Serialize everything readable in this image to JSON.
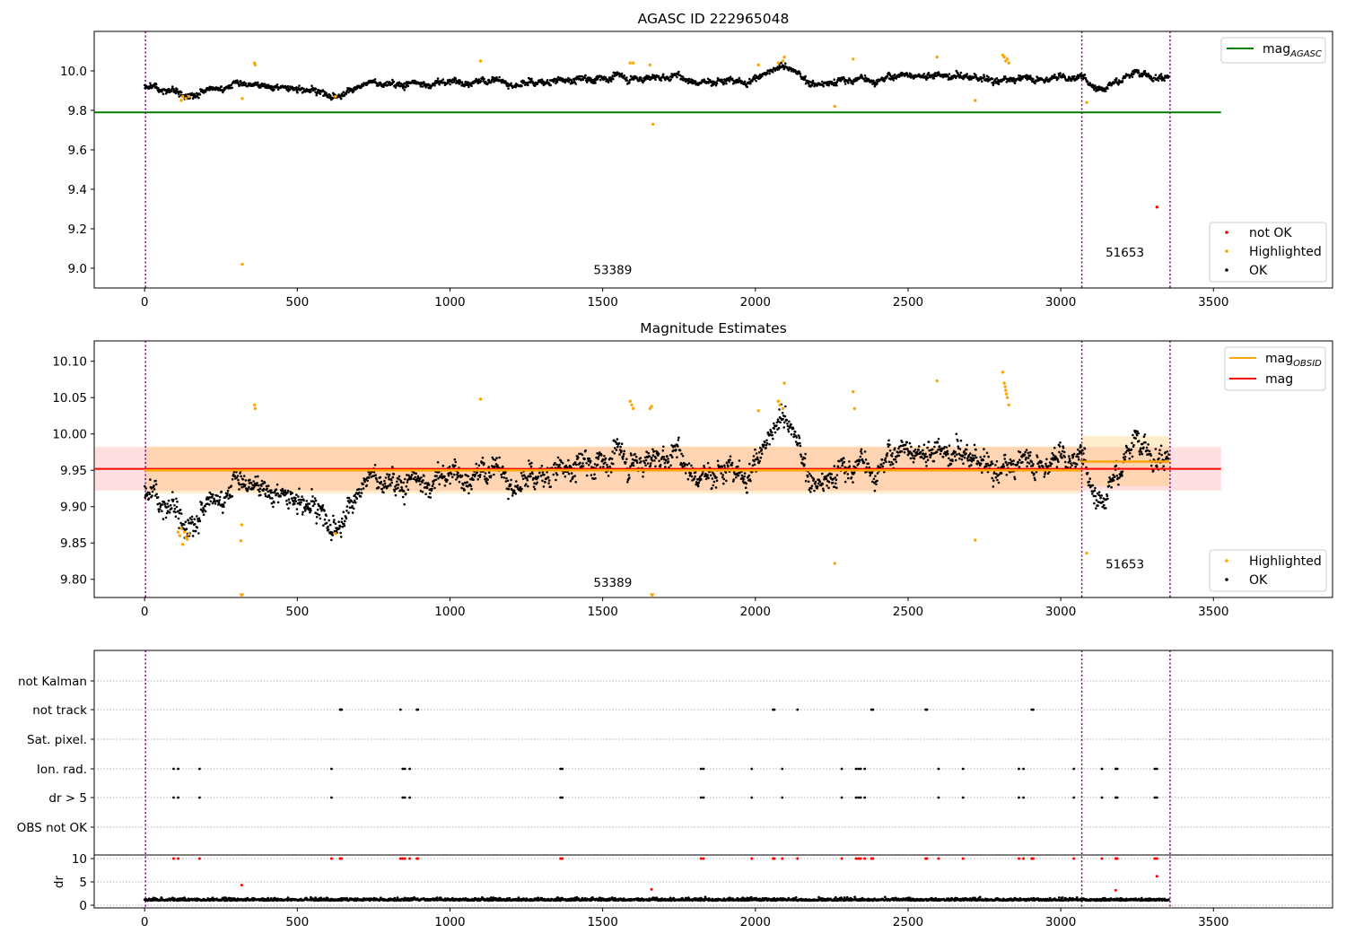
{
  "chart_data": [
    {
      "type": "scatter",
      "title": "AGASC ID 222965048",
      "xlim": [
        -165,
        3890
      ],
      "ylim": [
        8.9,
        10.2
      ],
      "xticks": [
        0,
        500,
        1000,
        1500,
        2000,
        2500,
        3000,
        3500
      ],
      "yticks": [
        9.0,
        9.2,
        9.4,
        9.6,
        9.8,
        10.0
      ],
      "ytick_labels": [
        "9.0",
        "9.2",
        "9.4",
        "9.6",
        "9.8",
        "10.0"
      ],
      "obs_boundaries": [
        0,
        3066,
        3355
      ],
      "obs_labels": [
        {
          "text": "53389",
          "x": 1533,
          "y": 8.97
        },
        {
          "text": "51653",
          "x": 3210,
          "y": 9.06
        }
      ],
      "reference_line": {
        "name": "mag",
        "name_sub": "AGASC",
        "y": 9.79,
        "x_range": [
          -165,
          3525
        ],
        "color": "#008000"
      },
      "legend_lines": [
        {
          "name": "mag",
          "name_sub": "AGASC",
          "color": "#008000"
        }
      ],
      "legend_points": [
        {
          "name": "not OK",
          "color": "#ff0000"
        },
        {
          "name": "Highlighted",
          "color": "#ffa500"
        },
        {
          "name": "OK",
          "color": "#000000"
        }
      ],
      "trend": [
        [
          0,
          9.92
        ],
        [
          60,
          9.93
        ],
        [
          140,
          9.88
        ],
        [
          200,
          9.93
        ],
        [
          360,
          9.92
        ],
        [
          430,
          9.93
        ],
        [
          520,
          9.91
        ],
        [
          600,
          9.89
        ],
        [
          700,
          9.93
        ],
        [
          820,
          9.94
        ],
        [
          1000,
          9.94
        ],
        [
          1150,
          9.94
        ],
        [
          1300,
          9.95
        ],
        [
          1450,
          9.96
        ],
        [
          1600,
          9.97
        ],
        [
          1800,
          9.96
        ],
        [
          2000,
          9.97
        ],
        [
          2100,
          10.0
        ],
        [
          2200,
          9.94
        ],
        [
          2400,
          9.96
        ],
        [
          2600,
          9.99
        ],
        [
          2750,
          9.95
        ],
        [
          2850,
          9.96
        ],
        [
          3000,
          9.97
        ],
        [
          3066,
          9.96
        ],
        [
          3120,
          9.92
        ],
        [
          3250,
          9.99
        ],
        [
          3355,
          9.96
        ]
      ],
      "not_ok_points": [
        [
          3315,
          9.31
        ]
      ],
      "highlighted_points": [
        [
          125,
          9.87
        ],
        [
          135,
          9.86
        ],
        [
          145,
          9.87
        ],
        [
          120,
          9.85
        ],
        [
          320,
          9.86
        ],
        [
          320,
          9.02
        ],
        [
          360,
          10.04
        ],
        [
          362,
          10.03
        ],
        [
          625,
          9.87
        ],
        [
          1100,
          10.05
        ],
        [
          1590,
          10.04
        ],
        [
          1600,
          10.04
        ],
        [
          1655,
          10.03
        ],
        [
          1665,
          9.73
        ],
        [
          2010,
          10.03
        ],
        [
          2075,
          10.04
        ],
        [
          2090,
          10.05
        ],
        [
          2095,
          10.07
        ],
        [
          2260,
          9.82
        ],
        [
          2320,
          10.06
        ],
        [
          2595,
          10.07
        ],
        [
          2720,
          9.85
        ],
        [
          2810,
          10.08
        ],
        [
          2815,
          10.07
        ],
        [
          2820,
          10.05
        ],
        [
          2825,
          10.06
        ],
        [
          2830,
          10.04
        ],
        [
          3085,
          9.84
        ]
      ],
      "ok_count": 2200
    },
    {
      "type": "scatter",
      "title": "Magnitude Estimates",
      "xlim": [
        -165,
        3890
      ],
      "ylim": [
        9.775,
        10.128
      ],
      "xticks": [
        0,
        500,
        1000,
        1500,
        2000,
        2500,
        3000,
        3500
      ],
      "yticks": [
        9.8,
        9.85,
        9.9,
        9.95,
        10.0,
        10.05,
        10.1
      ],
      "ytick_labels": [
        "9.80",
        "9.85",
        "9.90",
        "9.95",
        "10.00",
        "10.05",
        "10.10"
      ],
      "obs_boundaries": [
        0,
        3066,
        3355
      ],
      "obs_labels": [
        {
          "text": "53389",
          "x": 1533,
          "y": 9.79
        },
        {
          "text": "51653",
          "x": 3210,
          "y": 9.815
        }
      ],
      "mag_line": {
        "name": "mag",
        "y": 9.952,
        "band": [
          9.922,
          9.982
        ],
        "x_range": [
          -165,
          3525
        ],
        "color": "#ff0000"
      },
      "mag_obsid_segments": [
        {
          "obsid": "53389",
          "x": [
            0,
            3066
          ],
          "y": 9.95,
          "band": [
            9.918,
            9.983
          ]
        },
        {
          "obsid": "51653",
          "x": [
            3066,
            3355
          ],
          "y": 9.962,
          "band": [
            9.928,
            9.997
          ]
        }
      ],
      "legend_lines": [
        {
          "name": "mag",
          "name_sub": "OBSID",
          "color": "#ffa500"
        },
        {
          "name": "mag",
          "name_sub": "",
          "color": "#ff0000"
        }
      ],
      "legend_points": [
        {
          "name": "Highlighted",
          "color": "#ffa500"
        },
        {
          "name": "OK",
          "color": "#000000"
        }
      ],
      "highlighted_points": [
        [
          110,
          9.865
        ],
        [
          115,
          9.86
        ],
        [
          120,
          9.87
        ],
        [
          125,
          9.848
        ],
        [
          130,
          9.865
        ],
        [
          135,
          9.858
        ],
        [
          140,
          9.855
        ],
        [
          145,
          9.862
        ],
        [
          315,
          9.853
        ],
        [
          318,
          9.875
        ],
        [
          360,
          10.04
        ],
        [
          362,
          10.035
        ],
        [
          625,
          9.863
        ],
        [
          1100,
          10.048
        ],
        [
          1590,
          10.045
        ],
        [
          1595,
          10.04
        ],
        [
          1600,
          10.035
        ],
        [
          1655,
          10.035
        ],
        [
          1660,
          10.038
        ],
        [
          2010,
          10.032
        ],
        [
          2075,
          10.045
        ],
        [
          2080,
          10.04
        ],
        [
          2090,
          10.035
        ],
        [
          2095,
          10.07
        ],
        [
          2260,
          9.822
        ],
        [
          2320,
          10.058
        ],
        [
          2325,
          10.035
        ],
        [
          2595,
          10.073
        ],
        [
          2720,
          9.854
        ],
        [
          2810,
          10.085
        ],
        [
          2815,
          10.07
        ],
        [
          2818,
          10.065
        ],
        [
          2820,
          10.06
        ],
        [
          2822,
          10.055
        ],
        [
          2825,
          10.05
        ],
        [
          2830,
          10.04
        ],
        [
          3085,
          9.836
        ]
      ],
      "offscale_points": [
        [
          318,
          9.777
        ],
        [
          1662,
          9.777
        ]
      ],
      "ok_count": 2200
    },
    {
      "type": "scatter",
      "title": "",
      "xlim": [
        -165,
        3890
      ],
      "xticks": [
        0,
        500,
        1000,
        1500,
        2000,
        2500,
        3000,
        3500
      ],
      "obs_boundaries": [
        0,
        3066,
        3355
      ],
      "flag_categories": [
        "not Kalman",
        "not track",
        "Sat. pixel.",
        "Ion. rad.",
        "dr > 5",
        "OBS not OK"
      ],
      "flags": {
        "not Kalman": [],
        "not track": [
          640,
          642,
          645,
          838,
          892,
          895,
          2058,
          2062,
          2138,
          2380,
          2385,
          2558,
          2562,
          2905,
          2910
        ],
        "Sat. pixel.": [],
        "Ion. rad.": [
          95,
          110,
          180,
          612,
          845,
          852,
          868,
          1362,
          1368,
          1822,
          1830,
          1988,
          2088,
          2283,
          2330,
          2338,
          2345,
          2358,
          2600,
          2680,
          2863,
          2878,
          3043,
          3135,
          3180,
          3185,
          3308,
          3315
        ],
        "dr > 5": [
          95,
          110,
          180,
          612,
          845,
          852,
          868,
          1362,
          1368,
          1822,
          1830,
          1988,
          2088,
          2283,
          2330,
          2338,
          2345,
          2358,
          2600,
          2680,
          2863,
          2878,
          3043,
          3135,
          3180,
          3185,
          3308,
          3315
        ],
        "OBS not OK": []
      },
      "dr_panel": {
        "ylabel": "dr",
        "ylim": [
          -0.5,
          10.5
        ],
        "yticks": [
          0,
          5,
          10
        ],
        "ytick_labels": [
          "0",
          "5",
          "10"
        ],
        "ok_count": 2200,
        "red_points": [
          [
            95,
            10
          ],
          [
            110,
            10
          ],
          [
            180,
            10
          ],
          [
            612,
            10
          ],
          [
            640,
            10
          ],
          [
            645,
            10
          ],
          [
            838,
            10
          ],
          [
            845,
            10
          ],
          [
            852,
            10
          ],
          [
            868,
            10
          ],
          [
            892,
            10
          ],
          [
            895,
            10
          ],
          [
            1362,
            10
          ],
          [
            1368,
            10
          ],
          [
            1822,
            10
          ],
          [
            1830,
            10
          ],
          [
            1988,
            10
          ],
          [
            2058,
            10
          ],
          [
            2062,
            10
          ],
          [
            2088,
            10
          ],
          [
            2138,
            10
          ],
          [
            2283,
            10
          ],
          [
            2330,
            10
          ],
          [
            2338,
            10
          ],
          [
            2345,
            10
          ],
          [
            2358,
            10
          ],
          [
            2380,
            10
          ],
          [
            2385,
            10
          ],
          [
            2558,
            10
          ],
          [
            2562,
            10
          ],
          [
            2600,
            10
          ],
          [
            2680,
            10
          ],
          [
            2863,
            10
          ],
          [
            2878,
            10
          ],
          [
            2905,
            10
          ],
          [
            2910,
            10
          ],
          [
            3043,
            10
          ],
          [
            3135,
            10
          ],
          [
            3180,
            10
          ],
          [
            3185,
            10
          ],
          [
            3308,
            10
          ],
          [
            3315,
            10
          ],
          [
            318,
            4.3
          ],
          [
            1660,
            3.4
          ],
          [
            3180,
            3.2
          ],
          [
            3315,
            6.2
          ]
        ]
      }
    }
  ]
}
